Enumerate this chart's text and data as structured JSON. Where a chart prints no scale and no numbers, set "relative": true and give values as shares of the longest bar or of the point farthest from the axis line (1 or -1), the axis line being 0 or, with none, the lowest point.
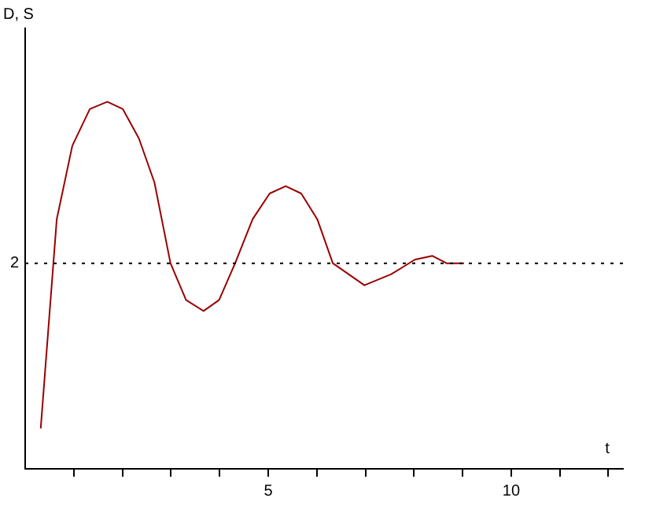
{
  "chart_data": {
    "type": "line",
    "relative": true,
    "xlabel": "t",
    "ylabel": "D, S",
    "xlim": [
      0,
      12.3
    ],
    "xticks": [
      {
        "value": 1,
        "label": null
      },
      {
        "value": 2,
        "label": null
      },
      {
        "value": 3,
        "label": null
      },
      {
        "value": 4,
        "label": null
      },
      5,
      {
        "value": 6,
        "label": null
      },
      {
        "value": 7,
        "label": null
      },
      {
        "value": 8,
        "label": null
      },
      {
        "value": 9,
        "label": null
      },
      10,
      {
        "value": 11,
        "label": null
      },
      {
        "value": 12,
        "label": null
      }
    ],
    "grid": false,
    "legend": false,
    "marker": "none",
    "line_style": "solid",
    "ref_lines": [
      {
        "axis": "y",
        "value": 0.56,
        "color": "#000000",
        "line_style": "dotted"
      }
    ],
    "annotations": [
      "2"
    ],
    "series": [
      {
        "color": "#990000",
        "x": [
          0.32,
          0.65,
          0.97,
          1.33,
          1.69,
          2.01,
          2.34,
          2.66,
          2.99,
          3.31,
          3.67,
          3.99,
          4.32,
          4.68,
          5.03,
          5.36,
          5.68,
          6.01,
          6.33,
          6.98,
          7.53,
          8.02,
          8.38,
          8.67,
          9.03
        ],
        "values": [
          0.11,
          0.68,
          0.88,
          0.98,
          1.0,
          0.98,
          0.9,
          0.78,
          0.56,
          0.46,
          0.43,
          0.46,
          0.56,
          0.68,
          0.75,
          0.77,
          0.75,
          0.68,
          0.56,
          0.5,
          0.53,
          0.57,
          0.58,
          0.56,
          0.56
        ]
      }
    ]
  }
}
